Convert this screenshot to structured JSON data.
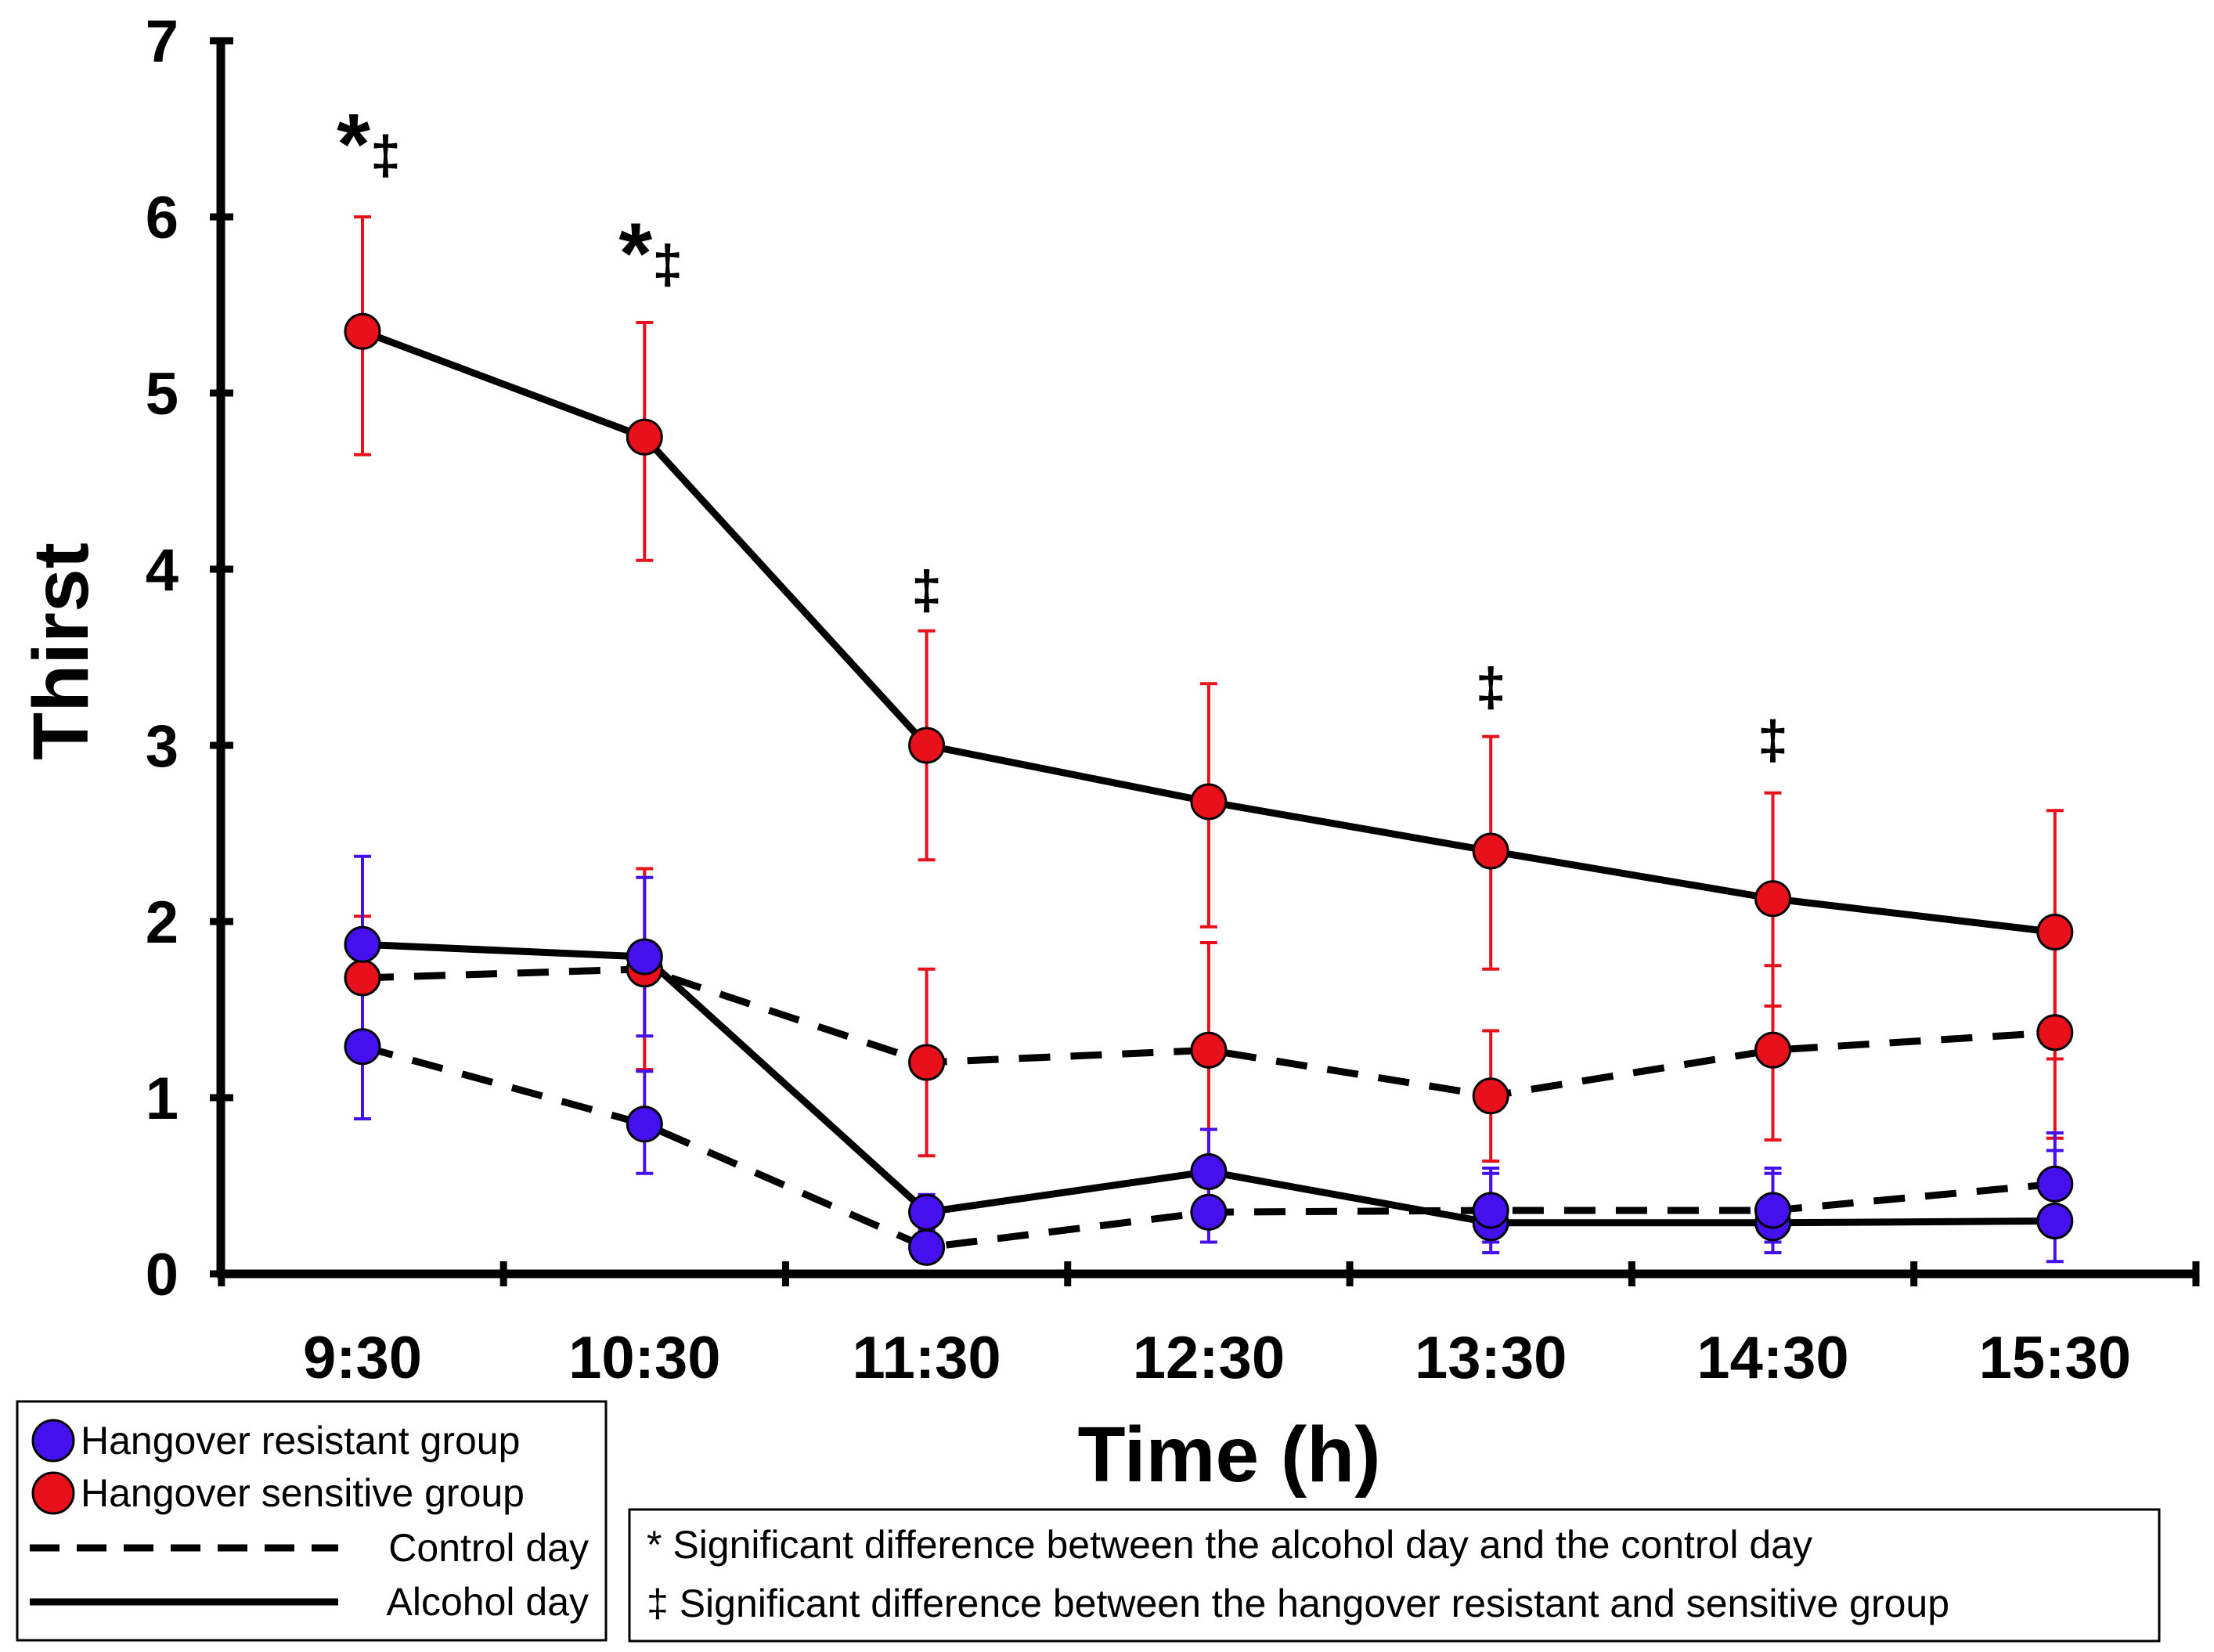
{
  "chart_data": {
    "type": "line",
    "title": "",
    "xlabel": "Time (h)",
    "ylabel": "Thirst",
    "ylim": [
      0,
      7
    ],
    "yticks": [
      "0",
      "1",
      "2",
      "3",
      "4",
      "5",
      "6",
      "7"
    ],
    "categories": [
      "9:30",
      "10:30",
      "11:30",
      "12:30",
      "13:30",
      "14:30",
      "15:30"
    ],
    "series": [
      {
        "name": "Hangover sensitive group - Alcohol day",
        "group": "sensitive",
        "day": "alcohol",
        "color": "#e8101a",
        "values": [
          5.35,
          4.75,
          3.0,
          2.68,
          2.4,
          2.13,
          1.94
        ],
        "err_upper": [
          6.0,
          5.4,
          3.65,
          3.35,
          3.05,
          2.73,
          2.63
        ],
        "err_lower": [
          4.65,
          4.05,
          2.35,
          1.97,
          1.73,
          1.52,
          1.22
        ]
      },
      {
        "name": "Hangover sensitive group - Control day",
        "group": "sensitive",
        "day": "control",
        "color": "#e8101a",
        "values": [
          1.68,
          1.73,
          1.2,
          1.27,
          1.01,
          1.27,
          1.37
        ],
        "err_upper": [
          2.03,
          2.3,
          1.73,
          1.88,
          1.38,
          1.75,
          1.86
        ],
        "err_lower": [
          1.33,
          1.16,
          0.67,
          0.66,
          0.64,
          0.76,
          0.77
        ]
      },
      {
        "name": "Hangover resistant group - Alcohol day",
        "group": "resistant",
        "day": "alcohol",
        "color": "#4411ee",
        "values": [
          1.87,
          1.8,
          0.35,
          0.58,
          0.29,
          0.29,
          0.3
        ],
        "err_upper": [
          2.37,
          2.25,
          0.45,
          0.82,
          0.57,
          0.57,
          0.7
        ],
        "err_lower": [
          1.37,
          1.35,
          0.25,
          0.34,
          0.12,
          0.12,
          0.07
        ]
      },
      {
        "name": "Hangover resistant group - Control day",
        "group": "resistant",
        "day": "control",
        "color": "#4411ee",
        "values": [
          1.29,
          0.85,
          0.15,
          0.35,
          0.36,
          0.36,
          0.51
        ],
        "err_upper": [
          1.7,
          1.15,
          0.22,
          0.55,
          0.6,
          0.6,
          0.8
        ],
        "err_lower": [
          0.88,
          0.57,
          0.1,
          0.18,
          0.18,
          0.18,
          0.25
        ]
      }
    ],
    "annotations": [
      {
        "category": "9:30",
        "text": "*‡",
        "y": 6.37
      },
      {
        "category": "10:30",
        "text": "*‡",
        "y": 5.75
      },
      {
        "category": "11:30",
        "text": "‡",
        "y": 3.9
      },
      {
        "category": "13:30",
        "text": "‡",
        "y": 3.35
      },
      {
        "category": "14:30",
        "text": "‡",
        "y": 3.05
      }
    ],
    "legend": {
      "placement": "bottom-left",
      "items": [
        {
          "marker": "blue-circle",
          "label": "Hangover resistant group"
        },
        {
          "marker": "red-circle",
          "label": "Hangover sensitive group"
        },
        {
          "marker": "dashed-line",
          "label": "Control day"
        },
        {
          "marker": "solid-line",
          "label": "Alcohol day"
        }
      ]
    },
    "notes": [
      "* Significant difference between the alcohol day and the control day",
      "‡ Significant difference between the hangover resistant and sensitive group"
    ],
    "colors": {
      "sensitive": "#e8101a",
      "resistant": "#4411ee",
      "axis": "#000000"
    }
  }
}
